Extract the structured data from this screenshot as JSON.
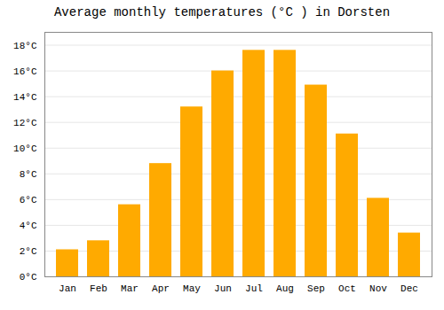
{
  "chart_data": {
    "type": "bar",
    "title": "Average monthly temperatures (°C ) in Dorsten",
    "categories": [
      "Jan",
      "Feb",
      "Mar",
      "Apr",
      "May",
      "Jun",
      "Jul",
      "Aug",
      "Sep",
      "Oct",
      "Nov",
      "Dec"
    ],
    "values": [
      2.1,
      2.8,
      5.6,
      8.8,
      13.2,
      16.0,
      17.6,
      17.6,
      14.9,
      11.1,
      6.1,
      3.4
    ],
    "color": "#FFAA00",
    "ylim": [
      0,
      19
    ],
    "yticks": [
      {
        "value": 0,
        "label": "0°C"
      },
      {
        "value": 2,
        "label": "2°C"
      },
      {
        "value": 4,
        "label": "4°C"
      },
      {
        "value": 6,
        "label": "6°C"
      },
      {
        "value": 8,
        "label": "8°C"
      },
      {
        "value": 10,
        "label": "10°C"
      },
      {
        "value": 12,
        "label": "12°C"
      },
      {
        "value": 14,
        "label": "14°C"
      },
      {
        "value": 16,
        "label": "16°C"
      },
      {
        "value": 18,
        "label": "18°C"
      }
    ],
    "grid": true
  }
}
